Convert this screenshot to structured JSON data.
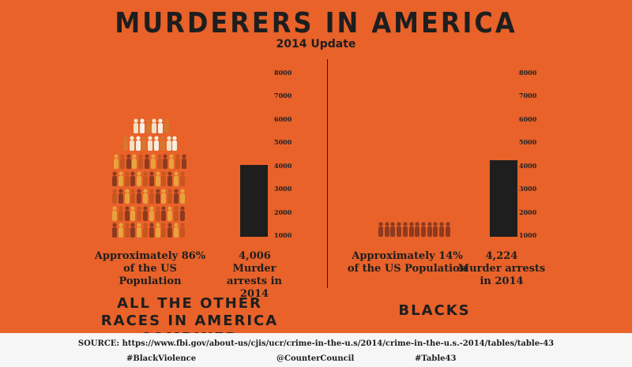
{
  "header": {
    "title": "MURDERERS IN AMERICA",
    "subtitle": "2014 Update"
  },
  "panels": [
    {
      "caption_population": "Approximately 86% of the US Population",
      "value_label": "4,006",
      "bar_label": "Murder arrests in 2014",
      "group_label": "ALL THE OTHER RACES IN AMERICA COMBINED"
    },
    {
      "caption_population": "Approximately 14% of the US Population",
      "value_label": "4,224",
      "bar_label": "Murder arrests in 2014",
      "group_label": "BLACKS"
    }
  ],
  "chart_data": [
    {
      "type": "bar",
      "categories": [
        "All the other races in America combined"
      ],
      "values": [
        4006
      ],
      "ylim": [
        1000,
        8000
      ],
      "yticks": [
        "1000",
        "2000",
        "3000",
        "4000",
        "5000",
        "6000",
        "7000",
        "8000"
      ],
      "population_share_percent": 86
    },
    {
      "type": "bar",
      "categories": [
        "Blacks"
      ],
      "values": [
        4224
      ],
      "ylim": [
        1000,
        8000
      ],
      "yticks": [
        "1000",
        "2000",
        "3000",
        "4000",
        "5000",
        "6000",
        "7000",
        "8000"
      ],
      "population_share_percent": 14
    }
  ],
  "footer": {
    "source": "SOURCE: https://www.fbi.gov/about-us/cjis/ucr/crime-in-the-u.s/2014/crime-in-the-u.s.-2014/tables/table-43",
    "tags": [
      "#BlackViolence",
      "@CounterCouncil",
      "#Table43"
    ]
  },
  "colors": {
    "background": "#e8622a",
    "bar": "#1e1e1e",
    "figures": [
      "#f3e2c4",
      "#e8a33c",
      "#d9762e",
      "#8e3a1f",
      "#f7f0e2",
      "#c9551f"
    ]
  }
}
